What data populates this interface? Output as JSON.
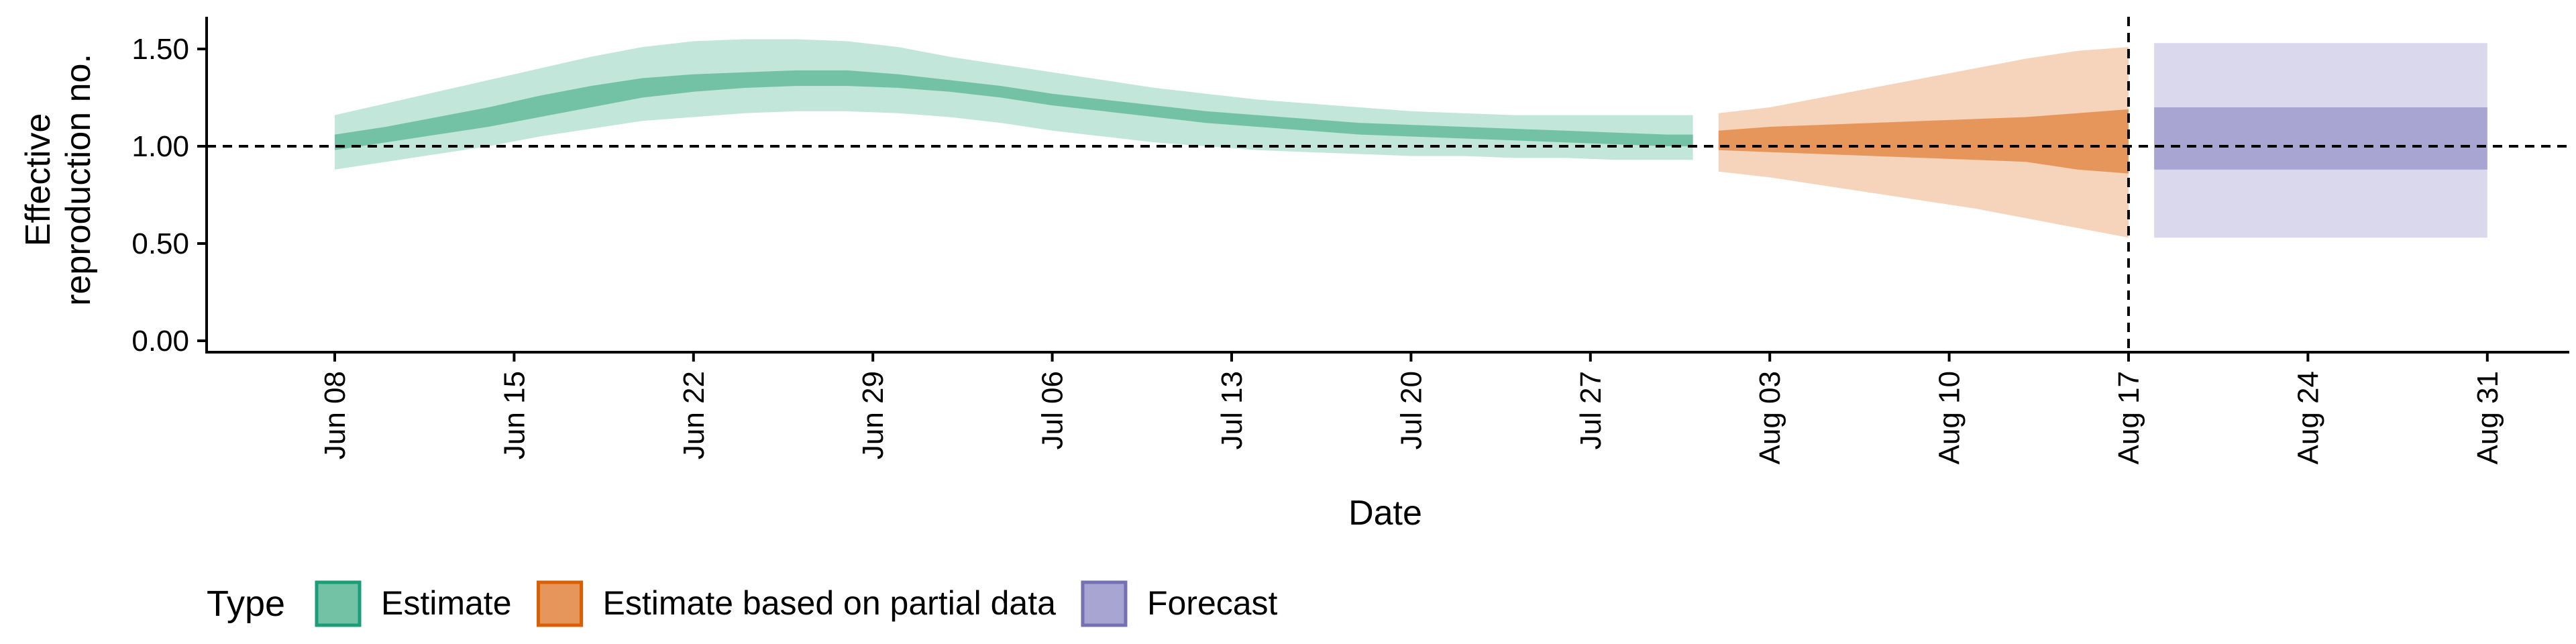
{
  "chart_data": {
    "type": "area",
    "xlabel": "Date",
    "ylabel_lines": [
      "Effective",
      "reproduction no."
    ],
    "ylim": [
      0,
      1.65
    ],
    "yticks": [
      0.0,
      0.5,
      1.0,
      1.5
    ],
    "ytick_labels": [
      "0.00",
      "0.50",
      "1.00",
      "1.50"
    ],
    "xlim": [
      "2024-06-03",
      "2024-09-05"
    ],
    "xticks": [
      "2024-06-08",
      "2024-06-15",
      "2024-06-22",
      "2024-06-29",
      "2024-07-06",
      "2024-07-13",
      "2024-07-20",
      "2024-07-27",
      "2024-08-03",
      "2024-08-10",
      "2024-08-17",
      "2024-08-24",
      "2024-08-31"
    ],
    "xtick_labels": [
      "Jun 08",
      "Jun 15",
      "Jun 22",
      "Jun 29",
      "Jul 06",
      "Jul 13",
      "Jul 20",
      "Jul 27",
      "Aug 03",
      "Aug 10",
      "Aug 17",
      "Aug 24",
      "Aug 31"
    ],
    "reference_line_y": 1.0,
    "reference_line_x": "2024-08-17",
    "grid": false,
    "legend": {
      "title": "Type",
      "position": "bottom-left",
      "items": [
        {
          "label": "Estimate",
          "fill": "#73c2a6",
          "stroke": "#1b9e77"
        },
        {
          "label": "Estimate based on partial data",
          "fill": "#e7965b",
          "stroke": "#d95f02"
        },
        {
          "label": "Forecast",
          "fill": "#a8a5d3",
          "stroke": "#7570b3"
        }
      ]
    },
    "series": [
      {
        "name": "Estimate",
        "color_inner": "#73c2a6",
        "color_outer": "#c3e6da",
        "x": [
          "2024-06-08",
          "2024-06-10",
          "2024-06-12",
          "2024-06-14",
          "2024-06-16",
          "2024-06-18",
          "2024-06-20",
          "2024-06-22",
          "2024-06-24",
          "2024-06-26",
          "2024-06-28",
          "2024-06-30",
          "2024-07-02",
          "2024-07-04",
          "2024-07-06",
          "2024-07-08",
          "2024-07-10",
          "2024-07-12",
          "2024-07-14",
          "2024-07-16",
          "2024-07-18",
          "2024-07-20",
          "2024-07-22",
          "2024-07-24",
          "2024-07-26",
          "2024-07-28",
          "2024-07-30",
          "2024-07-31"
        ],
        "lower_90": [
          0.88,
          0.92,
          0.96,
          1.0,
          1.05,
          1.09,
          1.13,
          1.15,
          1.17,
          1.18,
          1.18,
          1.17,
          1.15,
          1.12,
          1.08,
          1.05,
          1.02,
          1.0,
          0.98,
          0.97,
          0.96,
          0.95,
          0.95,
          0.94,
          0.94,
          0.93,
          0.93,
          0.93
        ],
        "lower_50": [
          0.98,
          1.02,
          1.06,
          1.1,
          1.15,
          1.2,
          1.25,
          1.28,
          1.3,
          1.31,
          1.31,
          1.3,
          1.28,
          1.25,
          1.21,
          1.18,
          1.15,
          1.12,
          1.1,
          1.08,
          1.06,
          1.05,
          1.04,
          1.03,
          1.02,
          1.01,
          1.0,
          1.0
        ],
        "upper_50": [
          1.06,
          1.1,
          1.15,
          1.2,
          1.26,
          1.31,
          1.35,
          1.37,
          1.38,
          1.39,
          1.39,
          1.37,
          1.34,
          1.31,
          1.27,
          1.24,
          1.21,
          1.18,
          1.16,
          1.14,
          1.12,
          1.11,
          1.1,
          1.09,
          1.08,
          1.07,
          1.06,
          1.06
        ],
        "upper_90": [
          1.16,
          1.22,
          1.28,
          1.34,
          1.4,
          1.46,
          1.51,
          1.54,
          1.55,
          1.55,
          1.54,
          1.51,
          1.46,
          1.42,
          1.38,
          1.34,
          1.3,
          1.27,
          1.24,
          1.22,
          1.2,
          1.18,
          1.17,
          1.16,
          1.16,
          1.16,
          1.16,
          1.16
        ]
      },
      {
        "name": "Estimate based on partial data",
        "color_inner": "#e7965b",
        "color_outer": "#f5d4bb",
        "x": [
          "2024-08-01",
          "2024-08-03",
          "2024-08-05",
          "2024-08-07",
          "2024-08-09",
          "2024-08-11",
          "2024-08-13",
          "2024-08-15",
          "2024-08-17"
        ],
        "lower_90": [
          0.87,
          0.84,
          0.8,
          0.76,
          0.72,
          0.68,
          0.63,
          0.58,
          0.53
        ],
        "lower_50": [
          0.98,
          0.97,
          0.96,
          0.95,
          0.94,
          0.93,
          0.92,
          0.88,
          0.86
        ],
        "upper_50": [
          1.08,
          1.1,
          1.11,
          1.12,
          1.13,
          1.14,
          1.15,
          1.17,
          1.19
        ],
        "upper_90": [
          1.17,
          1.2,
          1.25,
          1.3,
          1.35,
          1.4,
          1.45,
          1.49,
          1.51
        ]
      },
      {
        "name": "Forecast",
        "color_inner": "#a8a5d3",
        "color_outer": "#dad8ec",
        "x": [
          "2024-08-18",
          "2024-08-31"
        ],
        "lower_90": [
          0.53,
          0.53
        ],
        "lower_50": [
          0.88,
          0.88
        ],
        "upper_50": [
          1.2,
          1.2
        ],
        "upper_90": [
          1.53,
          1.53
        ]
      }
    ]
  }
}
